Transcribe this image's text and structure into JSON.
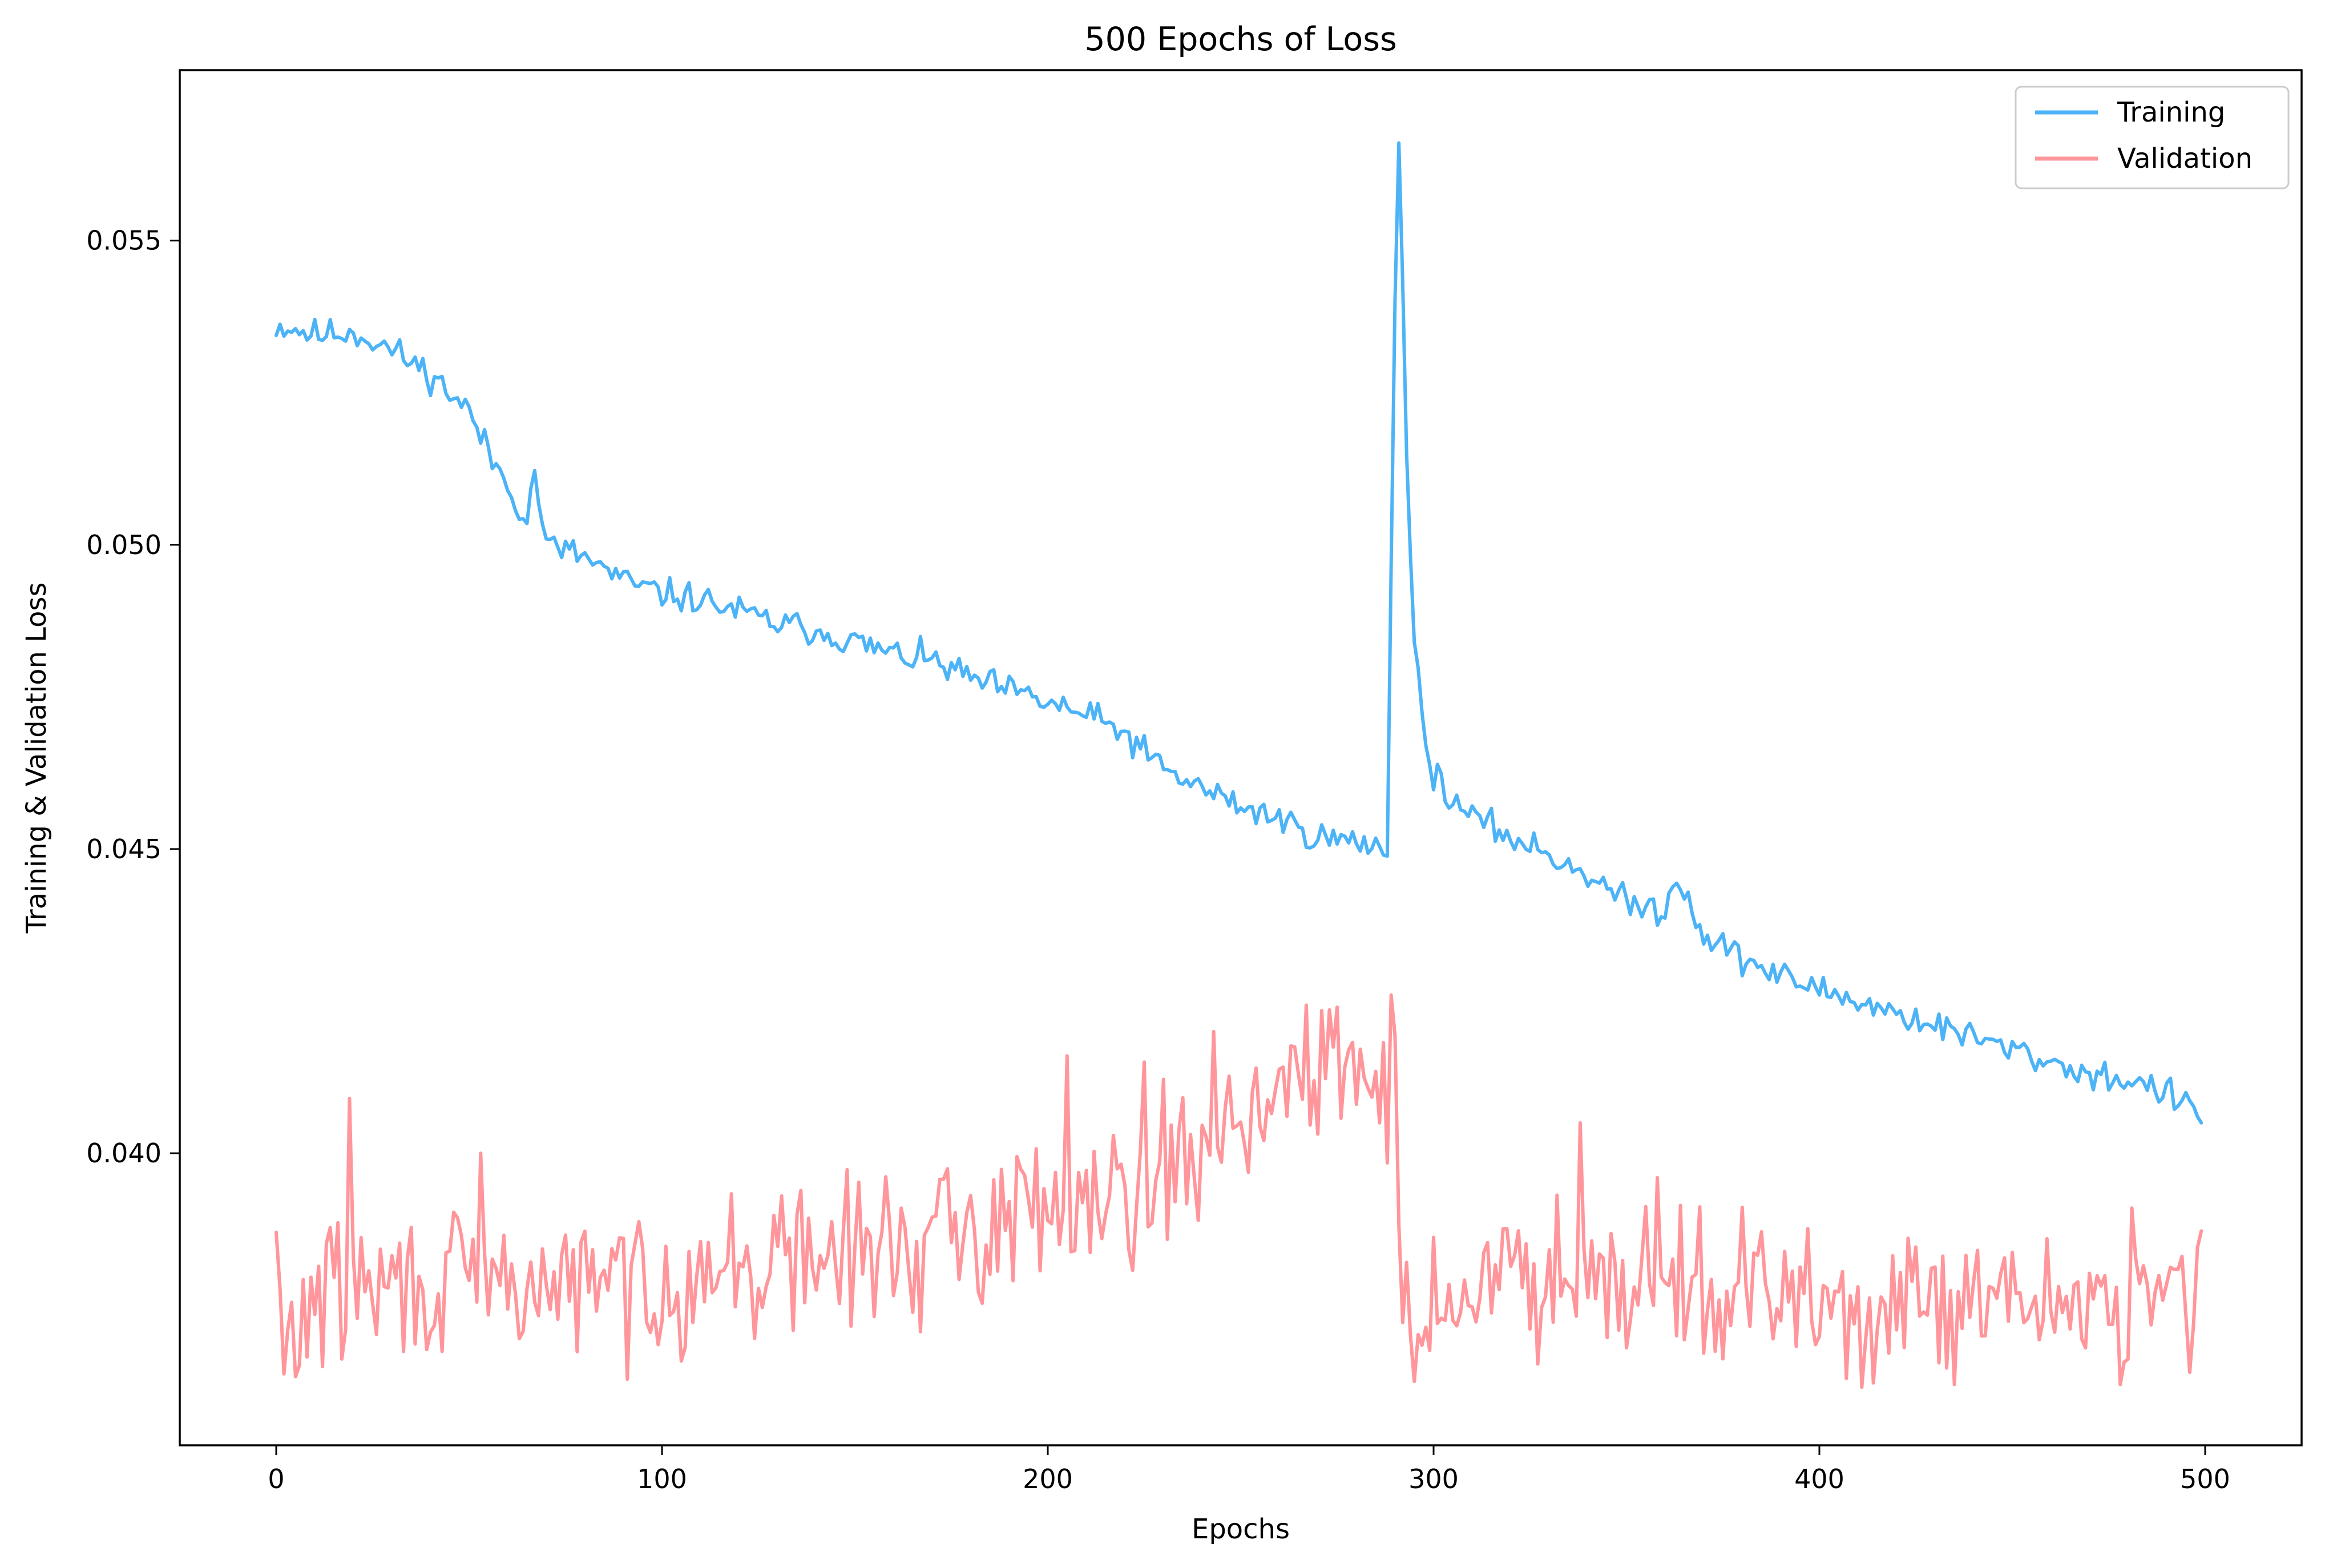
{
  "chart_data": {
    "type": "line",
    "title": "500 Epochs of Loss",
    "xlabel": "Epochs",
    "ylabel": "Training & Validation Loss",
    "xlim": [
      -25,
      525
    ],
    "ylim": [
      0.0352,
      0.0578
    ],
    "xticks": [
      0,
      100,
      200,
      300,
      400,
      500
    ],
    "xtick_labels": [
      "0",
      "100",
      "200",
      "300",
      "400",
      "500"
    ],
    "yticks": [
      0.04,
      0.045,
      0.05,
      0.055
    ],
    "ytick_labels": [
      "0.040",
      "0.045",
      "0.050",
      "0.055"
    ],
    "grid": false,
    "legend_position": "top-right",
    "x_start": 0,
    "x_step": 1,
    "series": [
      {
        "name": "Training",
        "color": "#4db3f7",
        "knots": [
          [
            0,
            0.0536
          ],
          [
            5,
            0.05355
          ],
          [
            10,
            0.05345
          ],
          [
            20,
            0.0535
          ],
          [
            30,
            0.0532
          ],
          [
            40,
            0.0528
          ],
          [
            50,
            0.0522
          ],
          [
            55,
            0.0515
          ],
          [
            60,
            0.051
          ],
          [
            65,
            0.0504
          ],
          [
            67,
            0.0512
          ],
          [
            70,
            0.05
          ],
          [
            80,
            0.0498
          ],
          [
            90,
            0.0494
          ],
          [
            100,
            0.0492
          ],
          [
            110,
            0.0491
          ],
          [
            120,
            0.0489
          ],
          [
            130,
            0.0487
          ],
          [
            140,
            0.0486
          ],
          [
            150,
            0.0484
          ],
          [
            160,
            0.0482
          ],
          [
            170,
            0.0481
          ],
          [
            180,
            0.0478
          ],
          [
            190,
            0.0476
          ],
          [
            200,
            0.0474
          ],
          [
            210,
            0.0472
          ],
          [
            220,
            0.0469
          ],
          [
            230,
            0.0463
          ],
          [
            240,
            0.046
          ],
          [
            250,
            0.0457
          ],
          [
            260,
            0.0455
          ],
          [
            270,
            0.0452
          ],
          [
            280,
            0.0451
          ],
          [
            288,
            0.045
          ],
          [
            290,
            0.0542
          ],
          [
            291,
            0.0568
          ],
          [
            293,
            0.0515
          ],
          [
            295,
            0.0485
          ],
          [
            298,
            0.0466
          ],
          [
            302,
            0.046
          ],
          [
            310,
            0.0455
          ],
          [
            320,
            0.0452
          ],
          [
            330,
            0.0449
          ],
          [
            340,
            0.0446
          ],
          [
            350,
            0.0441
          ],
          [
            360,
            0.044
          ],
          [
            363,
            0.0446
          ],
          [
            370,
            0.0436
          ],
          [
            380,
            0.0432
          ],
          [
            390,
            0.0429
          ],
          [
            400,
            0.0427
          ],
          [
            410,
            0.0425
          ],
          [
            420,
            0.0423
          ],
          [
            430,
            0.0421
          ],
          [
            440,
            0.0419
          ],
          [
            450,
            0.0417
          ],
          [
            460,
            0.0415
          ],
          [
            470,
            0.0413
          ],
          [
            480,
            0.0412
          ],
          [
            490,
            0.041
          ],
          [
            499,
            0.0406
          ]
        ],
        "noise": 0.00022,
        "seed": 11
      },
      {
        "name": "Validation",
        "color": "#ff969b",
        "knots": [
          [
            0,
            0.0383
          ],
          [
            2,
            0.0366
          ],
          [
            10,
            0.0377
          ],
          [
            30,
            0.0378
          ],
          [
            60,
            0.0378
          ],
          [
            100,
            0.0379
          ],
          [
            120,
            0.0381
          ],
          [
            150,
            0.0384
          ],
          [
            170,
            0.0385
          ],
          [
            190,
            0.0389
          ],
          [
            200,
            0.0393
          ],
          [
            220,
            0.0395
          ],
          [
            240,
            0.04
          ],
          [
            250,
            0.0408
          ],
          [
            260,
            0.041
          ],
          [
            270,
            0.0412
          ],
          [
            280,
            0.0413
          ],
          [
            290,
            0.0412
          ],
          [
            291,
            0.038
          ],
          [
            295,
            0.0372
          ],
          [
            300,
            0.0374
          ],
          [
            320,
            0.038
          ],
          [
            340,
            0.0382
          ],
          [
            360,
            0.038
          ],
          [
            380,
            0.0377
          ],
          [
            400,
            0.0375
          ],
          [
            420,
            0.0374
          ],
          [
            440,
            0.0374
          ],
          [
            460,
            0.0376
          ],
          [
            480,
            0.0377
          ],
          [
            499,
            0.0378
          ]
        ],
        "noise": 0.00105,
        "seed": 29,
        "spikes": [
          [
            19,
            0.0409
          ],
          [
            53,
            0.04
          ],
          [
            205,
            0.0416
          ],
          [
            225,
            0.0415
          ],
          [
            243,
            0.042
          ],
          [
            275,
            0.0424
          ],
          [
            289,
            0.0426
          ],
          [
            338,
            0.0405
          ],
          [
            358,
            0.0396
          ],
          [
            407,
            0.0363
          ],
          [
            435,
            0.0362
          ],
          [
            478,
            0.0362
          ],
          [
            481,
            0.0391
          ],
          [
            496,
            0.0364
          ]
        ]
      }
    ]
  }
}
